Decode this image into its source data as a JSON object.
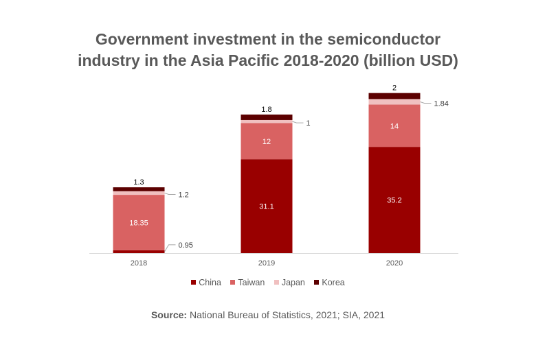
{
  "chart_data": {
    "type": "bar",
    "stacked": true,
    "title_lines": [
      "Government investment in the semiconductor",
      "industry in the Asia Pacific 2018-2020 (billion USD)"
    ],
    "categories": [
      "2018",
      "2019",
      "2020"
    ],
    "series": [
      {
        "name": "China",
        "values": [
          0.95,
          31.1,
          35.2
        ],
        "labels": [
          "0.95",
          "31.1",
          "35.2"
        ],
        "color": "#990000"
      },
      {
        "name": "Taiwan",
        "values": [
          18.35,
          12,
          14
        ],
        "labels": [
          "18.35",
          "12",
          "14"
        ],
        "color": "#d96262"
      },
      {
        "name": "Japan",
        "values": [
          1.2,
          1,
          1.84
        ],
        "labels": [
          "1.2",
          "1",
          "1.84"
        ],
        "color": "#f0c0c0"
      },
      {
        "name": "Korea",
        "values": [
          1.3,
          1.8,
          2
        ],
        "labels": [
          "1.3",
          "1.8",
          "2"
        ],
        "color": "#5c0000"
      }
    ],
    "xlabel": "",
    "ylabel": "",
    "ylim": [
      0,
      54
    ],
    "grid": false,
    "legend": "bottom"
  },
  "source": {
    "label": "Source:",
    "text": " National Bureau of Statistics, 2021; SIA, 2021"
  }
}
